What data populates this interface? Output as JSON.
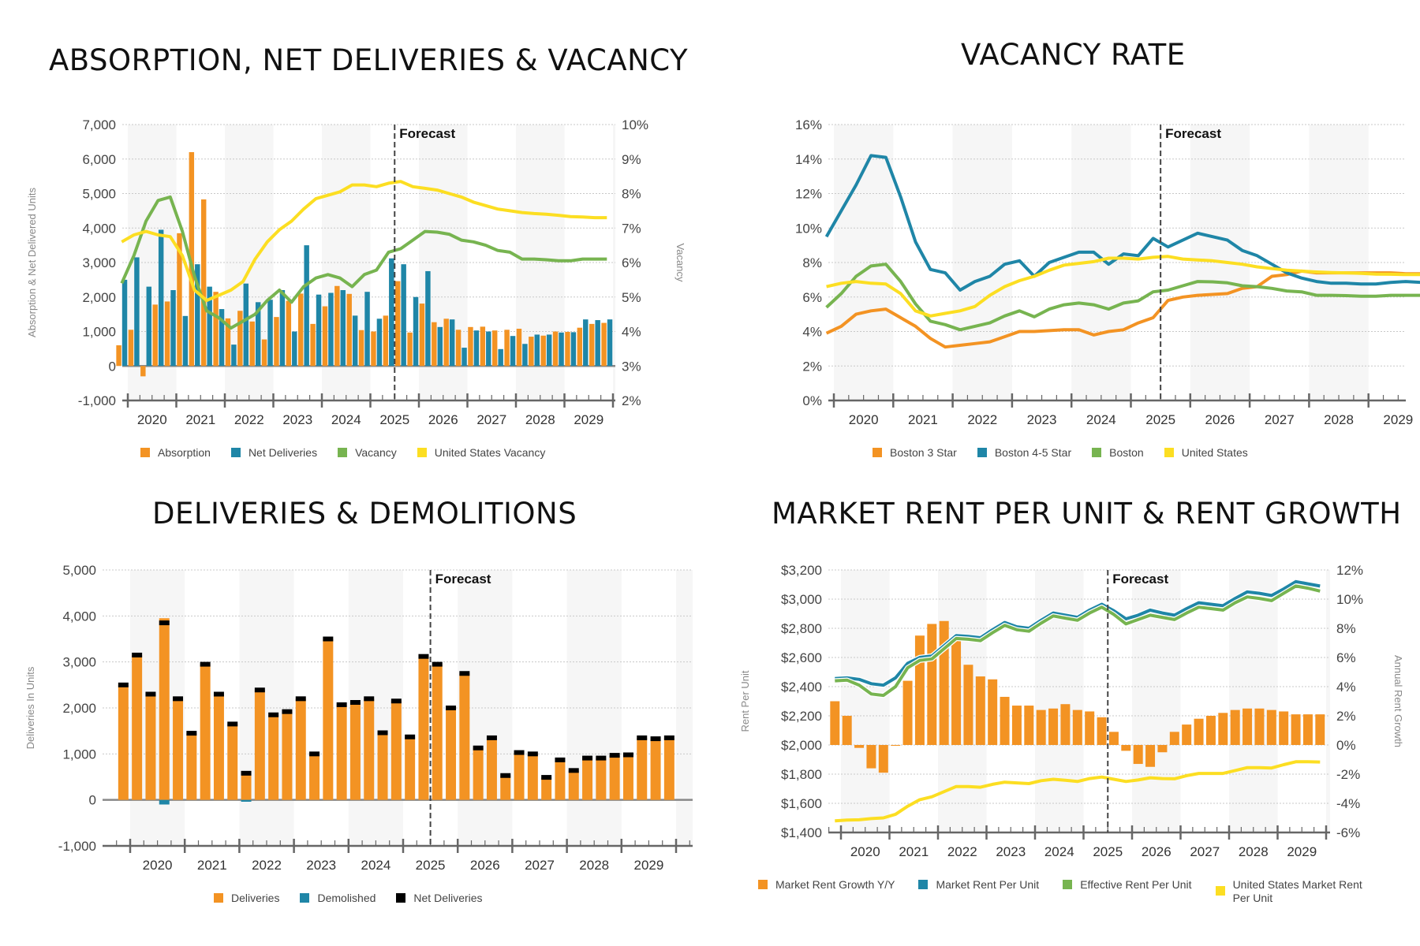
{
  "chart_data": [
    {
      "id": "absorption",
      "type": "bar",
      "title": "ABSORPTION, NET DELIVERIES & VACANCY",
      "ylabel": "Absorption & Net Delivered Units",
      "y2label": "Vacancy",
      "ylim": [
        -1000,
        7000
      ],
      "y2lim": [
        2,
        10
      ],
      "yticks": [
        "-1,000",
        "0",
        "1,000",
        "2,000",
        "3,000",
        "4,000",
        "5,000",
        "6,000",
        "7,000"
      ],
      "y2ticks": [
        "2%",
        "3%",
        "4%",
        "5%",
        "6%",
        "7%",
        "8%",
        "9%",
        "10%"
      ],
      "x_year_labels": [
        "2020",
        "2021",
        "2022",
        "2023",
        "2024",
        "2025",
        "2026",
        "2027",
        "2028",
        "2029"
      ],
      "forecast_label": "Forecast",
      "forecast_after_quarter_index": 22,
      "first_quarter": "2019 Q4",
      "series": [
        {
          "name": "Absorption",
          "type": "bar",
          "color": "#F39323",
          "values": [
            600,
            1050,
            -300,
            1780,
            1870,
            3850,
            6200,
            4830,
            2150,
            1380,
            1600,
            1290,
            770,
            1420,
            1890,
            2100,
            1220,
            1730,
            2320,
            2090,
            1040,
            1000,
            1460,
            2460,
            970,
            1810,
            1270,
            1370,
            1050,
            1130,
            1140,
            1030,
            1050,
            1080,
            850,
            880,
            1000,
            990,
            1110,
            1220,
            1250
          ]
        },
        {
          "name": "Net Deliveries",
          "type": "bar",
          "color": "#1F86A7",
          "values": [
            2500,
            3150,
            2300,
            3950,
            2200,
            1450,
            2950,
            2300,
            1650,
            620,
            2390,
            1850,
            1920,
            2200,
            1000,
            3500,
            2070,
            2120,
            2200,
            1460,
            2150,
            1370,
            3120,
            2950,
            2000,
            2750,
            1130,
            1350,
            530,
            1030,
            1000,
            490,
            870,
            640,
            910,
            910,
            970,
            980,
            1350,
            1330,
            1350
          ]
        },
        {
          "name": "Vacancy",
          "type": "line",
          "axis": "y2",
          "color": "#77B450",
          "values": [
            5.4,
            6.2,
            7.2,
            7.8,
            7.9,
            6.9,
            5.6,
            4.6,
            4.4,
            4.1,
            4.3,
            4.5,
            4.9,
            5.2,
            4.85,
            5.3,
            5.55,
            5.65,
            5.55,
            5.3,
            5.65,
            5.78,
            6.3,
            6.4,
            6.65,
            6.9,
            6.88,
            6.82,
            6.65,
            6.6,
            6.5,
            6.35,
            6.3,
            6.1,
            6.1,
            6.08,
            6.05,
            6.05,
            6.1,
            6.1,
            6.1
          ]
        },
        {
          "name": "United States Vacancy",
          "type": "line",
          "axis": "y2",
          "color": "#FCDE22",
          "values": [
            6.6,
            6.8,
            6.9,
            6.8,
            6.75,
            6.2,
            5.2,
            4.9,
            5.05,
            5.2,
            5.45,
            6.1,
            6.6,
            6.95,
            7.2,
            7.55,
            7.85,
            7.95,
            8.05,
            8.25,
            8.25,
            8.2,
            8.3,
            8.35,
            8.2,
            8.15,
            8.1,
            8.0,
            7.9,
            7.75,
            7.65,
            7.55,
            7.5,
            7.45,
            7.42,
            7.4,
            7.37,
            7.33,
            7.32,
            7.3,
            7.3
          ]
        }
      ],
      "legend": [
        "Absorption",
        "Net Deliveries",
        "Vacancy",
        "United States Vacancy"
      ],
      "legend_position": "bottom"
    },
    {
      "id": "vacancy",
      "type": "line",
      "title": "VACANCY RATE",
      "ylim": [
        0,
        16
      ],
      "yticks": [
        "0%",
        "2%",
        "4%",
        "6%",
        "8%",
        "10%",
        "12%",
        "14%",
        "16%"
      ],
      "x_year_labels": [
        "2020",
        "2021",
        "2022",
        "2023",
        "2024",
        "2025",
        "2026",
        "2027",
        "2028",
        "2029"
      ],
      "forecast_label": "Forecast",
      "forecast_after_quarter_index": 22,
      "first_quarter": "2019 Q4",
      "series": [
        {
          "name": "Boston 3 Star",
          "color": "#F39323",
          "values": [
            3.9,
            4.3,
            5.0,
            5.2,
            5.3,
            4.8,
            4.3,
            3.6,
            3.1,
            3.2,
            3.3,
            3.4,
            3.7,
            4.0,
            4.0,
            4.05,
            4.1,
            4.1,
            3.8,
            4.0,
            4.1,
            4.5,
            4.8,
            5.8,
            6.0,
            6.1,
            6.15,
            6.2,
            6.5,
            6.6,
            7.2,
            7.3,
            7.5,
            7.4,
            7.4,
            7.4,
            7.4,
            7.4,
            7.4,
            7.35,
            7.35
          ]
        },
        {
          "name": "Boston 4-5 Star",
          "color": "#1F86A7",
          "values": [
            9.5,
            11.0,
            12.5,
            14.2,
            14.1,
            11.8,
            9.2,
            7.6,
            7.4,
            6.4,
            6.9,
            7.2,
            7.9,
            8.1,
            7.2,
            8.0,
            8.3,
            8.6,
            8.6,
            7.9,
            8.5,
            8.4,
            9.4,
            8.9,
            9.3,
            9.7,
            9.5,
            9.3,
            8.7,
            8.4,
            7.9,
            7.4,
            7.1,
            6.9,
            6.8,
            6.8,
            6.75,
            6.75,
            6.85,
            6.9,
            6.85
          ]
        },
        {
          "name": "Boston",
          "color": "#77B450",
          "values": [
            5.4,
            6.2,
            7.2,
            7.8,
            7.9,
            6.9,
            5.6,
            4.6,
            4.4,
            4.1,
            4.3,
            4.5,
            4.9,
            5.2,
            4.85,
            5.3,
            5.55,
            5.65,
            5.55,
            5.3,
            5.65,
            5.78,
            6.3,
            6.4,
            6.65,
            6.9,
            6.88,
            6.82,
            6.65,
            6.6,
            6.5,
            6.35,
            6.3,
            6.1,
            6.1,
            6.08,
            6.05,
            6.05,
            6.1,
            6.1,
            6.1
          ]
        },
        {
          "name": "United States",
          "color": "#FCDE22",
          "values": [
            6.6,
            6.8,
            6.9,
            6.8,
            6.75,
            6.2,
            5.2,
            4.9,
            5.05,
            5.2,
            5.45,
            6.1,
            6.6,
            6.95,
            7.2,
            7.55,
            7.85,
            7.95,
            8.05,
            8.25,
            8.25,
            8.2,
            8.3,
            8.35,
            8.2,
            8.15,
            8.1,
            8.0,
            7.9,
            7.75,
            7.65,
            7.55,
            7.5,
            7.45,
            7.42,
            7.4,
            7.37,
            7.33,
            7.32,
            7.3,
            7.3
          ]
        }
      ],
      "legend": [
        "Boston 3 Star",
        "Boston 4-5 Star",
        "Boston",
        "United States"
      ],
      "legend_position": "bottom"
    },
    {
      "id": "deliveries",
      "type": "bar",
      "title": "DELIVERIES & DEMOLITIONS",
      "ylabel": "Deliveries In Units",
      "ylim": [
        -1000,
        5000
      ],
      "yticks": [
        "-1,000",
        "0",
        "1,000",
        "2,000",
        "3,000",
        "4,000",
        "5,000"
      ],
      "x_year_labels": [
        "2020",
        "2021",
        "2022",
        "2023",
        "2024",
        "2025",
        "2026",
        "2027",
        "2028",
        "2029"
      ],
      "forecast_label": "Forecast",
      "forecast_after_quarter_index": 22,
      "first_quarter": "2019 Q4",
      "series": [
        {
          "name": "Deliveries",
          "color": "#F39323",
          "values": [
            2500,
            3150,
            2300,
            3950,
            2200,
            1450,
            2950,
            2300,
            1650,
            620,
            2390,
            1850,
            1920,
            2200,
            1000,
            3500,
            2070,
            2120,
            2200,
            1460,
            2150,
            1370,
            3120,
            2950,
            2000,
            2750,
            1130,
            1350,
            530,
            1030,
            1000,
            490,
            870,
            640,
            910,
            910,
            970,
            980,
            1350,
            1330,
            1350
          ]
        },
        {
          "name": "Demolished",
          "color": "#1F86A7",
          "values": [
            0,
            0,
            0,
            -100,
            0,
            0,
            0,
            0,
            0,
            -40,
            0,
            0,
            0,
            0,
            0,
            0,
            0,
            0,
            0,
            0,
            0,
            0,
            0,
            0,
            0,
            0,
            0,
            0,
            0,
            0,
            0,
            0,
            0,
            0,
            0,
            0,
            0,
            0,
            0,
            0,
            0
          ]
        },
        {
          "name": "Net Deliveries",
          "color": "#000000",
          "values": [
            2500,
            3150,
            2300,
            3850,
            2200,
            1450,
            2950,
            2300,
            1650,
            580,
            2390,
            1850,
            1920,
            2200,
            1000,
            3500,
            2070,
            2120,
            2200,
            1460,
            2150,
            1370,
            3120,
            2950,
            2000,
            2750,
            1130,
            1350,
            530,
            1030,
            1000,
            490,
            870,
            640,
            910,
            910,
            970,
            980,
            1350,
            1330,
            1350
          ]
        }
      ],
      "legend": [
        "Deliveries",
        "Demolished",
        "Net Deliveries"
      ],
      "legend_position": "bottom"
    },
    {
      "id": "rent",
      "type": "bar",
      "title": "MARKET RENT PER UNIT & RENT GROWTH",
      "ylabel": "Rent Per Unit",
      "y2label": "Annual Rent Growth",
      "ylim": [
        1400,
        3200
      ],
      "y2lim": [
        -6,
        12
      ],
      "yticks": [
        "$1,400",
        "$1,600",
        "$1,800",
        "$2,000",
        "$2,200",
        "$2,400",
        "$2,600",
        "$2,800",
        "$3,000",
        "$3,200"
      ],
      "y2ticks": [
        "-6%",
        "-4%",
        "-2%",
        "0%",
        "2%",
        "4%",
        "6%",
        "8%",
        "10%",
        "12%"
      ],
      "x_year_labels": [
        "2020",
        "2021",
        "2022",
        "2023",
        "2024",
        "2025",
        "2026",
        "2027",
        "2028",
        "2029"
      ],
      "forecast_label": "Forecast",
      "forecast_after_quarter_index": 22,
      "first_quarter": "2019 Q4",
      "series": [
        {
          "name": "Market Rent Growth Y/Y",
          "type": "bar",
          "axis": "y2",
          "color": "#F39323",
          "values": [
            3.0,
            2.0,
            -0.2,
            -1.6,
            -1.9,
            0.0,
            4.4,
            7.5,
            8.3,
            8.5,
            7.2,
            5.5,
            4.7,
            4.5,
            3.3,
            2.7,
            2.7,
            2.4,
            2.5,
            2.8,
            2.4,
            2.3,
            1.9,
            0.9,
            -0.4,
            -1.3,
            -1.5,
            -0.5,
            0.9,
            1.4,
            1.8,
            2.0,
            2.2,
            2.4,
            2.5,
            2.5,
            2.4,
            2.3,
            2.1,
            2.1,
            2.1
          ]
        },
        {
          "name": "Market Rent Per Unit",
          "type": "line",
          "color": "#1F86A7",
          "values": [
            2455,
            2460,
            2450,
            2420,
            2410,
            2460,
            2560,
            2600,
            2610,
            2680,
            2750,
            2745,
            2735,
            2790,
            2840,
            2810,
            2800,
            2855,
            2905,
            2890,
            2875,
            2925,
            2965,
            2920,
            2865,
            2890,
            2925,
            2905,
            2890,
            2935,
            2975,
            2965,
            2955,
            3005,
            3050,
            3040,
            3025,
            3070,
            3120,
            3105,
            3090
          ]
        },
        {
          "name": "Effective Rent Per Unit",
          "type": "line",
          "color": "#77B450",
          "values": [
            2440,
            2445,
            2410,
            2350,
            2340,
            2400,
            2530,
            2580,
            2590,
            2660,
            2730,
            2725,
            2715,
            2770,
            2820,
            2790,
            2780,
            2835,
            2885,
            2870,
            2855,
            2905,
            2945,
            2895,
            2830,
            2860,
            2890,
            2875,
            2860,
            2905,
            2945,
            2935,
            2925,
            2975,
            3015,
            3005,
            2990,
            3040,
            3090,
            3075,
            3055
          ]
        },
        {
          "name": "United States Market Rent Per Unit",
          "type": "line",
          "color": "#FCDE22",
          "values": [
            1480,
            1485,
            1487,
            1495,
            1500,
            1525,
            1580,
            1625,
            1645,
            1680,
            1715,
            1715,
            1710,
            1730,
            1745,
            1740,
            1735,
            1755,
            1765,
            1758,
            1750,
            1770,
            1780,
            1765,
            1750,
            1760,
            1775,
            1770,
            1768,
            1790,
            1805,
            1805,
            1805,
            1825,
            1845,
            1845,
            1842,
            1865,
            1885,
            1885,
            1883
          ]
        }
      ],
      "legend": [
        "Market Rent Growth Y/Y",
        "Market Rent Per Unit",
        "Effective Rent Per Unit",
        "United States Market Rent Per Unit"
      ],
      "legend_position": "bottom"
    }
  ]
}
